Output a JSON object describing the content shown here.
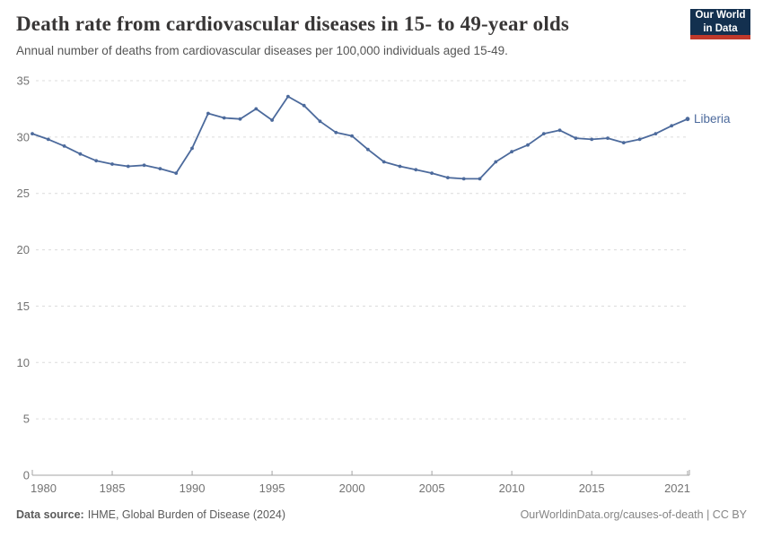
{
  "header": {
    "title": "Death rate from cardiovascular diseases in 15- to 49-year olds",
    "subtitle": "Annual number of deaths from cardiovascular diseases per 100,000 individuals aged 15-49."
  },
  "logo": {
    "line1": "Our World",
    "line2": "in Data"
  },
  "chart_data": {
    "type": "line",
    "title": "Death rate from cardiovascular diseases in 15- to 49-year olds",
    "subtitle": "Annual number of deaths from cardiovascular diseases per 100,000 individuals aged 15-49.",
    "xlabel": "",
    "ylabel": "",
    "xlim": [
      1980,
      2021
    ],
    "ylim": [
      0,
      35
    ],
    "xticks": [
      1980,
      1985,
      1990,
      1995,
      2000,
      2005,
      2010,
      2015,
      2021
    ],
    "yticks": [
      0,
      5,
      10,
      15,
      20,
      25,
      30,
      35
    ],
    "grid": "horizontal-dashed",
    "legend": "end-of-line-label",
    "series": [
      {
        "name": "Liberia",
        "color": "#4C6A9C",
        "x": [
          1980,
          1981,
          1982,
          1983,
          1984,
          1985,
          1986,
          1987,
          1988,
          1989,
          1990,
          1991,
          1992,
          1993,
          1994,
          1995,
          1996,
          1997,
          1998,
          1999,
          2000,
          2001,
          2002,
          2003,
          2004,
          2005,
          2006,
          2007,
          2008,
          2009,
          2010,
          2011,
          2012,
          2013,
          2014,
          2015,
          2016,
          2017,
          2018,
          2019,
          2020,
          2021
        ],
        "values": [
          30.3,
          29.8,
          29.2,
          28.5,
          27.9,
          27.6,
          27.4,
          27.5,
          27.2,
          26.8,
          29.0,
          32.1,
          31.7,
          31.6,
          32.5,
          31.5,
          33.6,
          32.8,
          31.4,
          30.4,
          30.1,
          28.9,
          27.8,
          27.4,
          27.1,
          26.8,
          26.4,
          26.3,
          26.3,
          27.8,
          28.7,
          29.3,
          30.3,
          30.6,
          29.9,
          29.8,
          29.9,
          29.5,
          29.8,
          30.3,
          31.0,
          31.6
        ]
      }
    ]
  },
  "colors": {
    "line": "#4C6A9C",
    "grid": "#dcdcdc",
    "axis": "#a3a3a3",
    "tick_label": "#737373",
    "logo_bg": "#13304f",
    "logo_accent": "#c0392b"
  },
  "footer": {
    "source_label": "Data source:",
    "source_value": "IHME, Global Burden of Disease (2024)",
    "credit": "OurWorldinData.org/causes-of-death | CC BY"
  }
}
